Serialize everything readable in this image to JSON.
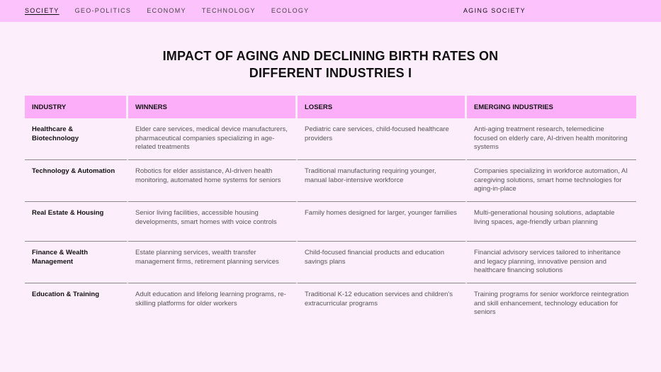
{
  "nav": {
    "items": [
      "SOCIETY",
      "GEO-POLITICS",
      "ECONOMY",
      "TECHNOLOGY",
      "ECOLOGY"
    ],
    "active": "SOCIETY",
    "section": "AGING SOCIETY"
  },
  "title": {
    "line1": "IMPACT OF AGING AND DECLINING BIRTH RATES ON",
    "line2": "DIFFERENT INDUSTRIES I"
  },
  "table": {
    "headers": [
      "INDUSTRY",
      "WINNERS",
      "LOSERS",
      "EMERGING INDUSTRIES"
    ],
    "rows": [
      {
        "industry": "Healthcare & Biotechnology",
        "winners": "Elder care services, medical device manufacturers, pharmaceutical companies specializing in age-related treatments",
        "losers": "Pediatric care services, child-focused healthcare providers",
        "emerging": "Anti-aging treatment research, telemedicine focused on elderly care, AI-driven health monitoring systems"
      },
      {
        "industry": "Technology & Automation",
        "winners": "Robotics for elder assistance, AI-driven health monitoring, automated home systems for seniors",
        "losers": "Traditional manufacturing requiring younger, manual labor-intensive workforce",
        "emerging": "Companies specializing in workforce automation, AI caregiving solutions, smart home technologies for aging-in-place"
      },
      {
        "industry": "Real Estate & Housing",
        "winners": "Senior living facilities, accessible housing developments, smart homes with voice controls",
        "losers": "Family homes designed for larger, younger families",
        "emerging": "Multi-generational housing solutions, adaptable living spaces, age-friendly urban planning"
      },
      {
        "industry": "Finance & Wealth Management",
        "winners": "Estate planning services, wealth transfer management firms, retirement planning services",
        "losers": "Child-focused financial products and education savings plans",
        "emerging": "Financial advisory services tailored to inheritance and legacy planning, innovative pension and healthcare financing solutions"
      },
      {
        "industry": "Education & Training",
        "winners": "Adult education and lifelong learning programs, re-skilling platforms for older workers",
        "losers": "Traditional K-12 education services and children's extracurricular programs",
        "emerging": "Training programs for senior workforce reintegration and skill enhancement, technology education for seniors"
      }
    ]
  }
}
